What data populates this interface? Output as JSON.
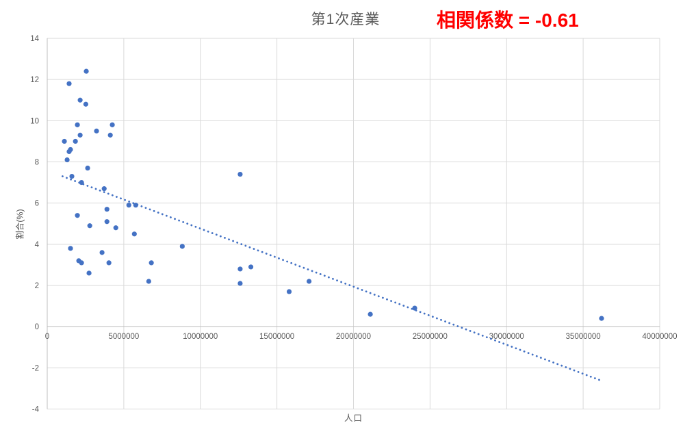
{
  "header": {
    "title": "第1次産業"
  },
  "annotation": {
    "text": "相関係数 = -0.61",
    "color": "#ff0000"
  },
  "chart_data": {
    "type": "scatter",
    "title": "第1次産業",
    "xlabel": "人口",
    "ylabel": "割合(%)",
    "xlim": [
      0,
      40000000
    ],
    "ylim": [
      -4,
      14
    ],
    "x_ticks": [
      0,
      5000000,
      10000000,
      15000000,
      20000000,
      25000000,
      30000000,
      35000000,
      40000000
    ],
    "y_ticks": [
      -4,
      -2,
      0,
      2,
      4,
      6,
      8,
      10,
      12,
      14
    ],
    "grid": true,
    "legend": false,
    "correlation": -0.61,
    "colors": {
      "marker": "#4472C4",
      "trendline": "#4472C4",
      "gridline": "#D9D9D9",
      "axis": "#BFBFBF",
      "tick_text": "#595959"
    },
    "points": [
      [
        1430000,
        11.8
      ],
      [
        2550000,
        12.4
      ],
      [
        2150000,
        11.0
      ],
      [
        2520000,
        10.8
      ],
      [
        1970000,
        9.8
      ],
      [
        4250000,
        9.8
      ],
      [
        3220000,
        9.5
      ],
      [
        2150000,
        9.3
      ],
      [
        4120000,
        9.3
      ],
      [
        1120000,
        9.0
      ],
      [
        1840000,
        9.0
      ],
      [
        1520000,
        8.6
      ],
      [
        1430000,
        8.5
      ],
      [
        1300000,
        8.1
      ],
      [
        2640000,
        7.7
      ],
      [
        1610000,
        7.3
      ],
      [
        2240000,
        7.0
      ],
      [
        3720000,
        6.7
      ],
      [
        5330000,
        5.9
      ],
      [
        5780000,
        5.9
      ],
      [
        3900000,
        5.7
      ],
      [
        1970000,
        5.4
      ],
      [
        3900000,
        5.1
      ],
      [
        2780000,
        4.9
      ],
      [
        4480000,
        4.8
      ],
      [
        5690000,
        4.5
      ],
      [
        8820000,
        3.9
      ],
      [
        1520000,
        3.8
      ],
      [
        3580000,
        3.6
      ],
      [
        2060000,
        3.2
      ],
      [
        2240000,
        3.1
      ],
      [
        4030000,
        3.1
      ],
      [
        6800000,
        3.1
      ],
      [
        2730000,
        2.6
      ],
      [
        6630000,
        2.2
      ],
      [
        12600000,
        7.4
      ],
      [
        12600000,
        2.8
      ],
      [
        13300000,
        2.9
      ],
      [
        12600000,
        2.1
      ],
      [
        15800000,
        1.7
      ],
      [
        17100000,
        2.2
      ],
      [
        21100000,
        0.6
      ],
      [
        24000000,
        0.9
      ],
      [
        36200000,
        0.4
      ]
    ],
    "trendline": {
      "style": "dotted",
      "x1": 1000000,
      "y1": 7.3,
      "x2": 36100000,
      "y2": -2.6
    }
  }
}
